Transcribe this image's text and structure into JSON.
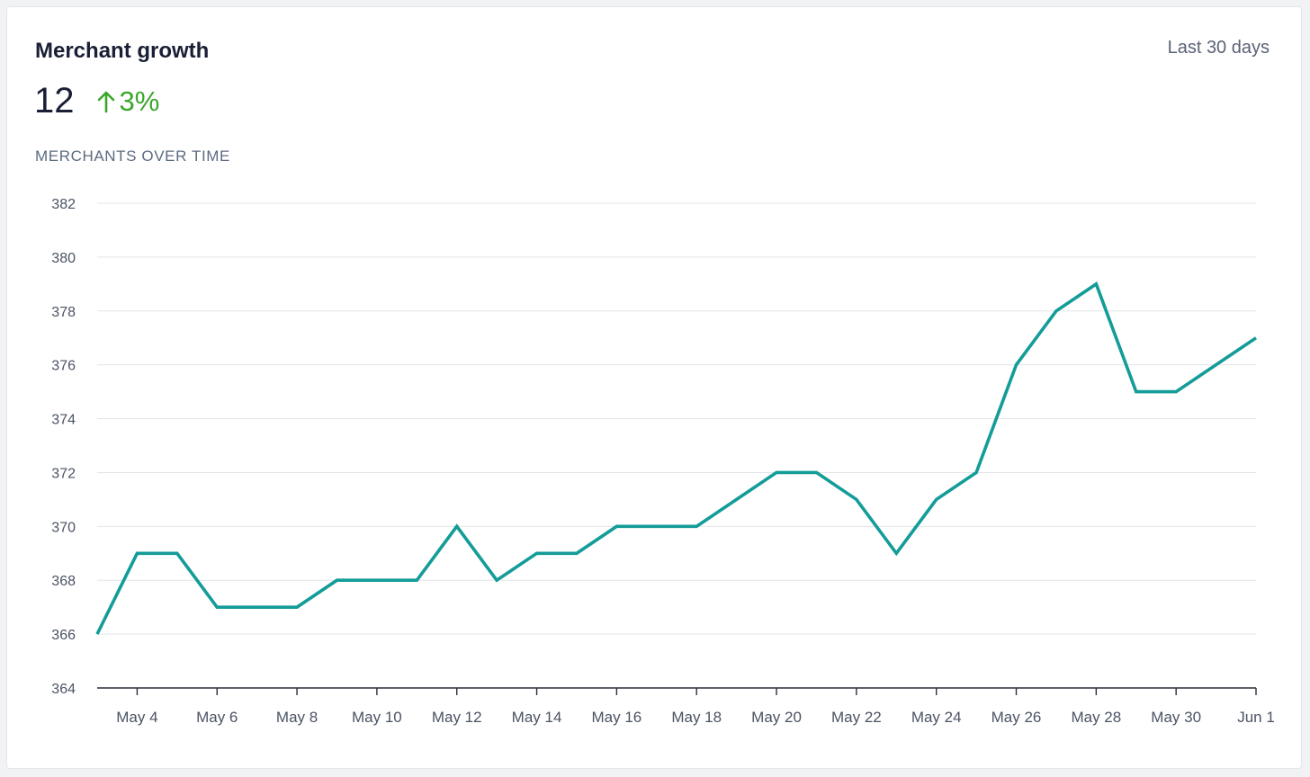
{
  "card": {
    "title": "Merchant growth",
    "range_label": "Last 30 days",
    "metric_value": "12",
    "delta_text": "3%",
    "delta_icon": "arrow-up-icon",
    "subtitle": "MERCHANTS OVER TIME"
  },
  "colors": {
    "line": "#139c98",
    "delta": "#3aa62a",
    "grid": "#e2e5e9",
    "axis": "#2b2f38"
  },
  "chart_data": {
    "type": "line",
    "title": "MERCHANTS OVER TIME",
    "xlabel": "",
    "ylabel": "",
    "ylim": [
      364,
      382
    ],
    "y_ticks": [
      364,
      366,
      368,
      370,
      372,
      374,
      376,
      378,
      380,
      382
    ],
    "grid": true,
    "x": [
      "May 3",
      "May 4",
      "May 5",
      "May 6",
      "May 7",
      "May 8",
      "May 9",
      "May 10",
      "May 11",
      "May 12",
      "May 13",
      "May 14",
      "May 15",
      "May 16",
      "May 17",
      "May 18",
      "May 19",
      "May 20",
      "May 21",
      "May 22",
      "May 23",
      "May 24",
      "May 25",
      "May 26",
      "May 27",
      "May 28",
      "May 29",
      "May 30",
      "May 31",
      "Jun 1"
    ],
    "x_tick_labels": [
      "May 4",
      "May 6",
      "May 8",
      "May 10",
      "May 12",
      "May 14",
      "May 16",
      "May 18",
      "May 20",
      "May 22",
      "May 24",
      "May 26",
      "May 28",
      "May 30",
      "Jun 1"
    ],
    "series": [
      {
        "values": [
          366,
          369,
          369,
          367,
          367,
          367,
          368,
          368,
          368,
          370,
          368,
          369,
          369,
          370,
          370,
          370,
          371,
          372,
          372,
          371,
          369,
          371,
          372,
          376,
          378,
          379,
          375,
          375,
          376,
          377
        ]
      }
    ]
  }
}
